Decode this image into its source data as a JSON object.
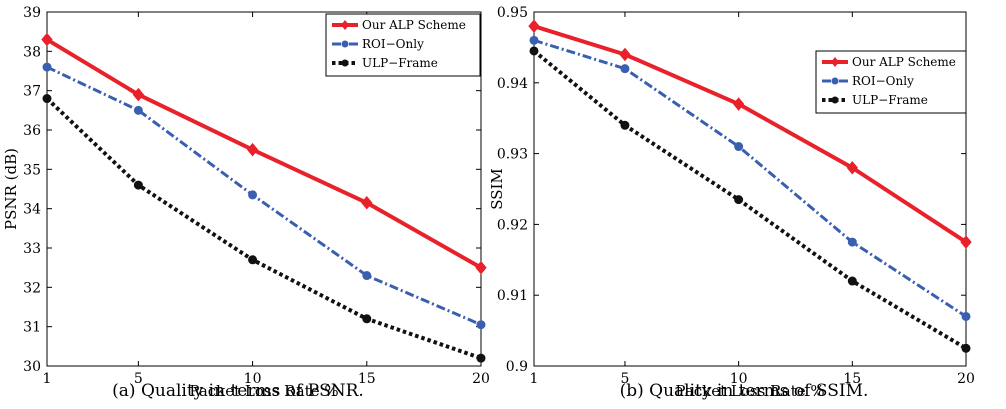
{
  "chart_data": [
    {
      "type": "line",
      "caption": "(a) Quality in terms of PSNR.",
      "xlabel": "Packet Loss Rate %",
      "ylabel": "PSNR (dB)",
      "x": [
        1,
        5,
        10,
        15,
        20
      ],
      "x_ticks": [
        "1",
        "5",
        "10",
        "15",
        "20"
      ],
      "xlim": [
        1,
        20
      ],
      "ylim": [
        30,
        39
      ],
      "y_ticks": [
        "30",
        "31",
        "32",
        "33",
        "34",
        "35",
        "36",
        "37",
        "38",
        "39"
      ],
      "grid": false,
      "legend_position": "top-right",
      "series": [
        {
          "name": "Our ALP Scheme",
          "values": [
            38.3,
            36.9,
            35.5,
            34.15,
            32.5
          ],
          "color": "#e8212a",
          "style": "solid",
          "marker": "diamond"
        },
        {
          "name": "ROI−Only",
          "values": [
            37.6,
            36.5,
            34.35,
            32.3,
            31.05
          ],
          "color": "#3a5fb0",
          "style": "dashdot",
          "marker": "circle"
        },
        {
          "name": "ULP−Frame",
          "values": [
            36.8,
            34.6,
            32.7,
            31.2,
            30.2
          ],
          "color": "#111111",
          "style": "dotted",
          "marker": "circle"
        }
      ]
    },
    {
      "type": "line",
      "caption": "(b) Quality in terms of SSIM.",
      "xlabel": "Packet Loss Rate %",
      "ylabel": "SSIM",
      "x": [
        1,
        5,
        10,
        15,
        20
      ],
      "x_ticks": [
        "1",
        "5",
        "10",
        "15",
        "20"
      ],
      "xlim": [
        1,
        20
      ],
      "ylim": [
        0.9,
        0.95
      ],
      "y_ticks": [
        "0.9",
        "0.91",
        "0.92",
        "0.93",
        "0.94",
        "0.95"
      ],
      "grid": false,
      "legend_position": "top-right",
      "series": [
        {
          "name": "Our ALP Scheme",
          "values": [
            0.948,
            0.944,
            0.937,
            0.928,
            0.9175
          ],
          "color": "#e8212a",
          "style": "solid",
          "marker": "diamond"
        },
        {
          "name": "ROI−Only",
          "values": [
            0.946,
            0.942,
            0.931,
            0.9175,
            0.907
          ],
          "color": "#3a5fb0",
          "style": "dashdot",
          "marker": "circle"
        },
        {
          "name": "ULP−Frame",
          "values": [
            0.9445,
            0.934,
            0.9235,
            0.912,
            0.9025
          ],
          "color": "#111111",
          "style": "dotted",
          "marker": "circle"
        }
      ]
    }
  ]
}
